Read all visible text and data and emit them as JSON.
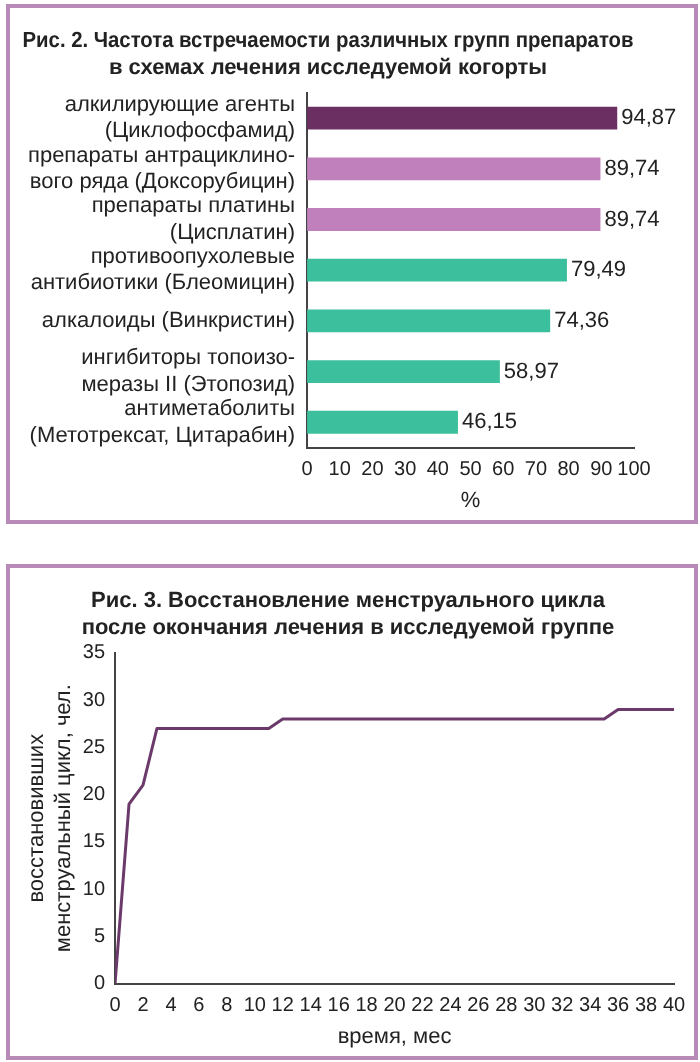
{
  "chart_data": [
    {
      "type": "bar",
      "orientation": "horizontal",
      "title": "Рис. 2. Частота встречаемости различных групп препаратов\nв схемах лечения исследуемой когорты",
      "xlabel": "%",
      "categories": [
        "алкилирующие агенты\n(Циклофосфамид)",
        "препараты антрациклино-\nвого ряда (Доксорубицин)",
        "препараты платины\n(Цисплатин)",
        "противоопухолевые\nантибиотики (Блеомицин)",
        "алкалоиды (Винкристин)",
        "ингибиторы топоизо-\nмеразы II (Этопозид)",
        "антиметаболиты\n(Метотрексат, Цитарабин)"
      ],
      "values": [
        94.87,
        89.74,
        89.74,
        79.49,
        74.36,
        58.97,
        46.15
      ],
      "colors": [
        "#6b2f62",
        "#bf80bb",
        "#bf80bb",
        "#3cbf9c",
        "#3cbf9c",
        "#3cbf9c",
        "#3cbf9c"
      ],
      "value_labels": [
        "94,87",
        "89,74",
        "89,74",
        "79,49",
        "74,36",
        "58,97",
        "46,15"
      ],
      "xlim": [
        0,
        100
      ],
      "xticks": [
        0,
        10,
        20,
        30,
        40,
        50,
        60,
        70,
        80,
        90,
        100
      ],
      "grid": false,
      "legend": false
    },
    {
      "type": "line",
      "title": "Рис. 3. Восстановление менструального цикла\nпосле окончания лечения в исследуемой группе",
      "xlabel": "время, мес",
      "ylabel": "восстановивших\nменструальный цикл, чел.",
      "x": [
        0,
        1,
        2,
        3,
        11,
        12,
        35,
        36,
        40
      ],
      "series": [
        {
          "color": "#6b3a6b",
          "values": [
            0,
            19,
            21,
            27,
            27,
            28,
            28,
            29,
            29
          ]
        }
      ],
      "xlim": [
        0,
        40
      ],
      "xticks": [
        0,
        2,
        4,
        6,
        8,
        10,
        12,
        14,
        16,
        18,
        20,
        22,
        24,
        26,
        28,
        30,
        32,
        34,
        36,
        38,
        40
      ],
      "ylim": [
        0,
        35
      ],
      "yticks": [
        0,
        5,
        10,
        15,
        20,
        25,
        30,
        35
      ],
      "grid": false,
      "legend": false,
      "marker": "none",
      "line_style": "solid"
    }
  ]
}
